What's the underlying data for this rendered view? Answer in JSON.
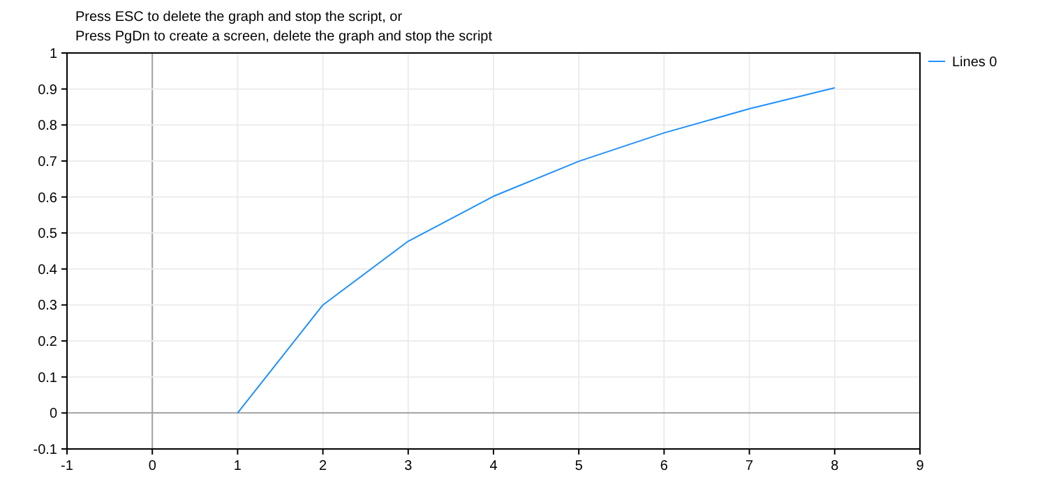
{
  "chart_data": {
    "type": "line",
    "title": "Press ESC to delete the graph and stop the script, or",
    "subtitle": "Press PgDn to create a screen, delete the graph and stop the script",
    "x": [
      1,
      2,
      3,
      4,
      5,
      6,
      7,
      8
    ],
    "series": [
      {
        "name": "Lines 0",
        "color": "#1e90ff",
        "values": [
          0,
          0.3,
          0.477,
          0.602,
          0.699,
          0.778,
          0.845,
          0.903
        ]
      }
    ],
    "xlim": [
      -1,
      9
    ],
    "xticks": [
      -1,
      0,
      1,
      2,
      3,
      4,
      5,
      6,
      7,
      8,
      9
    ],
    "ylim": [
      -0.1,
      1
    ],
    "yticks": [
      -0.1,
      0,
      0.1,
      0.2,
      0.3,
      0.4,
      0.5,
      0.6,
      0.7,
      0.8,
      0.9,
      1
    ],
    "grid": true,
    "legend": "top right",
    "marker": "none",
    "line_style": "solid"
  }
}
